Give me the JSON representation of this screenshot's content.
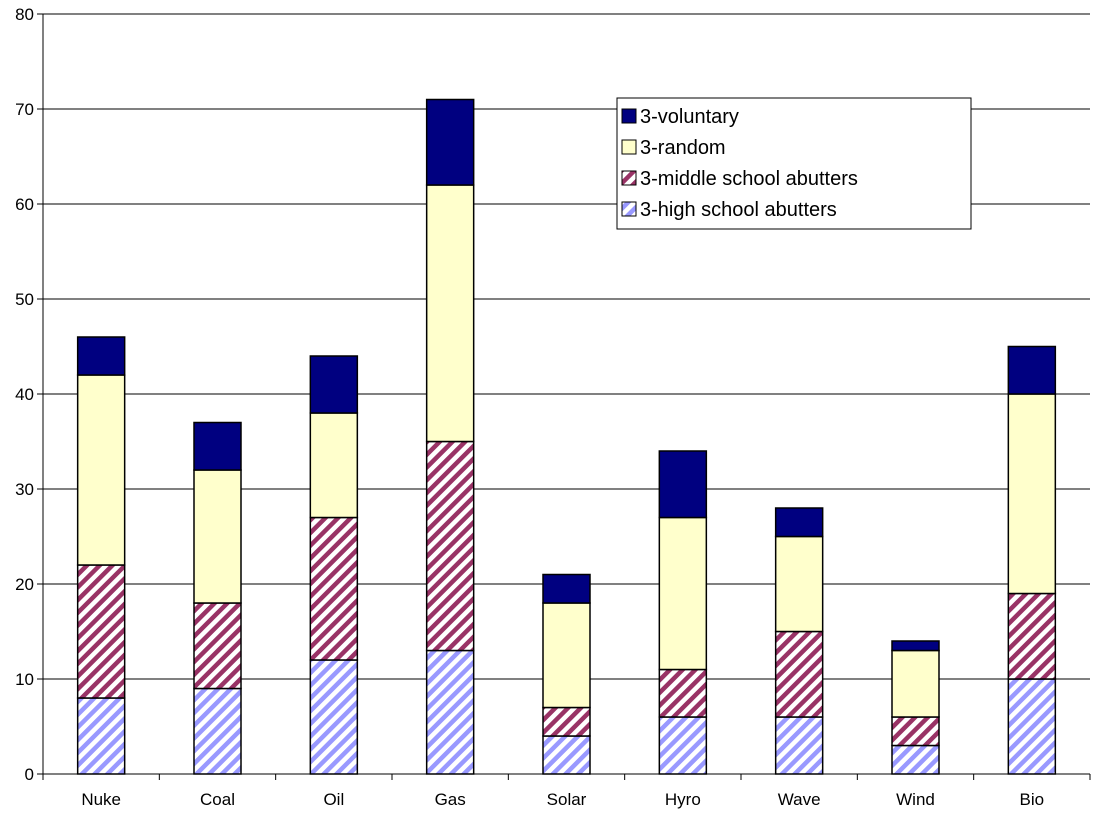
{
  "chart_data": {
    "type": "bar",
    "stacked": true,
    "categories": [
      "Nuke",
      "Coal",
      "Oil",
      "Gas",
      "Solar",
      "Hyro",
      "Wave",
      "Wind",
      "Bio"
    ],
    "series": [
      {
        "name": "3-high school abutters",
        "values": [
          8,
          9,
          12,
          13,
          4,
          6,
          6,
          3,
          10
        ],
        "color": "#9999ff",
        "pattern": "diagonal-stripes"
      },
      {
        "name": "3-middle school abutters",
        "values": [
          14,
          9,
          15,
          22,
          3,
          5,
          9,
          3,
          9
        ],
        "color": "#993366",
        "pattern": "diagonal-stripes"
      },
      {
        "name": "3-random",
        "values": [
          20,
          14,
          11,
          27,
          11,
          16,
          10,
          7,
          21
        ],
        "color": "#ffffcc",
        "pattern": "solid"
      },
      {
        "name": "3-voluntary",
        "values": [
          4,
          5,
          6,
          9,
          3,
          7,
          3,
          1,
          5
        ],
        "color": "#000080",
        "pattern": "solid"
      }
    ],
    "legend_order": [
      "3-voluntary",
      "3-random",
      "3-middle school abutters",
      "3-high school abutters"
    ],
    "title": "",
    "xlabel": "",
    "ylabel": "",
    "ylim": [
      0,
      80
    ],
    "yticks": [
      0,
      10,
      20,
      30,
      40,
      50,
      60,
      70,
      80
    ],
    "grid": "horizontal",
    "legend_position": "top-right"
  }
}
